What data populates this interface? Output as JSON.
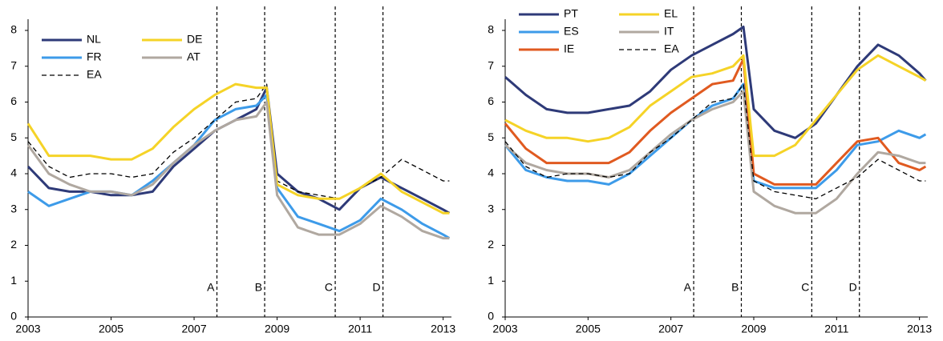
{
  "chart_data": [
    {
      "type": "line",
      "x": [
        2003,
        2003.5,
        2004,
        2004.5,
        2005,
        2005.5,
        2006,
        2006.5,
        2007,
        2007.5,
        2008,
        2008.5,
        2008.75,
        2009,
        2009.5,
        2010,
        2010.5,
        2011,
        2011.5,
        2012,
        2012.5,
        2013,
        2013.15
      ],
      "xlim": [
        2003,
        2013.2
      ],
      "xticks": [
        2003,
        2005,
        2007,
        2009,
        2011,
        2013
      ],
      "ylim": [
        0,
        8
      ],
      "yticks": [
        0,
        1,
        2,
        3,
        4,
        5,
        6,
        7,
        8
      ],
      "legend": "upper left",
      "series": [
        {
          "name": "NL",
          "color": "#2e3a78",
          "dashed": false,
          "values": [
            4.2,
            3.6,
            3.5,
            3.5,
            3.4,
            3.4,
            3.5,
            4.2,
            4.7,
            5.2,
            5.5,
            5.8,
            6.4,
            4.0,
            3.5,
            3.3,
            3.0,
            3.6,
            3.9,
            3.6,
            3.3,
            3.0,
            2.9
          ]
        },
        {
          "name": "FR",
          "color": "#3d9be9",
          "dashed": false,
          "values": [
            3.5,
            3.1,
            3.3,
            3.5,
            3.5,
            3.4,
            3.8,
            4.3,
            4.8,
            5.5,
            5.8,
            5.9,
            6.2,
            3.6,
            2.8,
            2.6,
            2.4,
            2.7,
            3.3,
            3.0,
            2.6,
            2.3,
            2.2
          ]
        },
        {
          "name": "EA",
          "color": "#000000",
          "dashed": true,
          "values": [
            4.9,
            4.2,
            3.9,
            4.0,
            4.0,
            3.9,
            4.0,
            4.6,
            5.0,
            5.5,
            6.0,
            6.1,
            6.5,
            3.8,
            3.5,
            3.4,
            3.3,
            3.6,
            3.9,
            4.4,
            4.1,
            3.8,
            3.8
          ]
        },
        {
          "name": "DE",
          "color": "#f5d327",
          "dashed": false,
          "values": [
            5.4,
            4.5,
            4.5,
            4.5,
            4.4,
            4.4,
            4.7,
            5.3,
            5.8,
            6.2,
            6.5,
            6.4,
            6.4,
            3.7,
            3.4,
            3.3,
            3.3,
            3.6,
            4.0,
            3.5,
            3.2,
            2.9,
            2.9
          ]
        },
        {
          "name": "AT",
          "color": "#b0a8a0",
          "dashed": false,
          "values": [
            4.8,
            4.0,
            3.7,
            3.5,
            3.5,
            3.4,
            3.7,
            4.3,
            4.8,
            5.2,
            5.5,
            5.6,
            6.0,
            3.4,
            2.5,
            2.3,
            2.3,
            2.6,
            3.1,
            2.8,
            2.4,
            2.2,
            2.2
          ]
        }
      ],
      "annotations": [
        {
          "label": "A",
          "x": 2007.55
        },
        {
          "label": "B",
          "x": 2008.7
        },
        {
          "label": "C",
          "x": 2010.4
        },
        {
          "label": "D",
          "x": 2011.55
        }
      ]
    },
    {
      "type": "line",
      "x": [
        2003,
        2003.5,
        2004,
        2004.5,
        2005,
        2005.5,
        2006,
        2006.5,
        2007,
        2007.5,
        2008,
        2008.5,
        2008.75,
        2009,
        2009.5,
        2010,
        2010.5,
        2011,
        2011.5,
        2012,
        2012.5,
        2013,
        2013.15
      ],
      "xlim": [
        2003,
        2013.2
      ],
      "xticks": [
        2003,
        2005,
        2007,
        2009,
        2011,
        2013
      ],
      "ylim": [
        0,
        8
      ],
      "yticks": [
        0,
        1,
        2,
        3,
        4,
        5,
        6,
        7,
        8
      ],
      "legend": "upper left",
      "series": [
        {
          "name": "PT",
          "color": "#2e3a78",
          "dashed": false,
          "values": [
            6.7,
            6.2,
            5.8,
            5.7,
            5.7,
            5.8,
            5.9,
            6.3,
            6.9,
            7.3,
            7.6,
            7.9,
            8.1,
            5.8,
            5.2,
            5.0,
            5.4,
            6.2,
            7.0,
            7.6,
            7.3,
            6.8,
            6.6
          ]
        },
        {
          "name": "ES",
          "color": "#3d9be9",
          "dashed": false,
          "values": [
            4.8,
            4.1,
            3.9,
            3.8,
            3.8,
            3.7,
            4.0,
            4.5,
            5.0,
            5.5,
            5.9,
            6.1,
            6.5,
            3.8,
            3.6,
            3.6,
            3.6,
            4.1,
            4.8,
            4.9,
            5.2,
            5.0,
            5.1
          ]
        },
        {
          "name": "IE",
          "color": "#e05a20",
          "dashed": false,
          "values": [
            5.4,
            4.7,
            4.3,
            4.3,
            4.3,
            4.3,
            4.6,
            5.2,
            5.7,
            6.1,
            6.5,
            6.6,
            7.2,
            4.0,
            3.7,
            3.7,
            3.7,
            4.3,
            4.9,
            5.0,
            4.3,
            4.1,
            4.2
          ]
        },
        {
          "name": "EL",
          "color": "#f5d327",
          "dashed": false,
          "values": [
            5.5,
            5.2,
            5.0,
            5.0,
            4.9,
            5.0,
            5.3,
            5.9,
            6.3,
            6.7,
            6.8,
            7.0,
            7.3,
            4.5,
            4.5,
            4.8,
            5.5,
            6.2,
            6.9,
            7.3,
            7.0,
            6.7,
            6.6
          ]
        },
        {
          "name": "IT",
          "color": "#b0a8a0",
          "dashed": false,
          "values": [
            4.8,
            4.3,
            4.1,
            4.0,
            4.0,
            3.9,
            4.1,
            4.6,
            5.1,
            5.5,
            5.8,
            6.0,
            6.3,
            3.5,
            3.1,
            2.9,
            2.9,
            3.3,
            4.0,
            4.6,
            4.5,
            4.3,
            4.3
          ]
        },
        {
          "name": "EA",
          "color": "#000000",
          "dashed": true,
          "values": [
            4.9,
            4.2,
            3.9,
            4.0,
            4.0,
            3.9,
            4.0,
            4.6,
            5.0,
            5.5,
            6.0,
            6.1,
            6.5,
            3.8,
            3.5,
            3.4,
            3.3,
            3.6,
            3.9,
            4.4,
            4.1,
            3.8,
            3.8
          ]
        }
      ],
      "annotations": [
        {
          "label": "A",
          "x": 2007.55
        },
        {
          "label": "B",
          "x": 2008.7
        },
        {
          "label": "C",
          "x": 2010.4
        },
        {
          "label": "D",
          "x": 2011.55
        }
      ]
    }
  ]
}
